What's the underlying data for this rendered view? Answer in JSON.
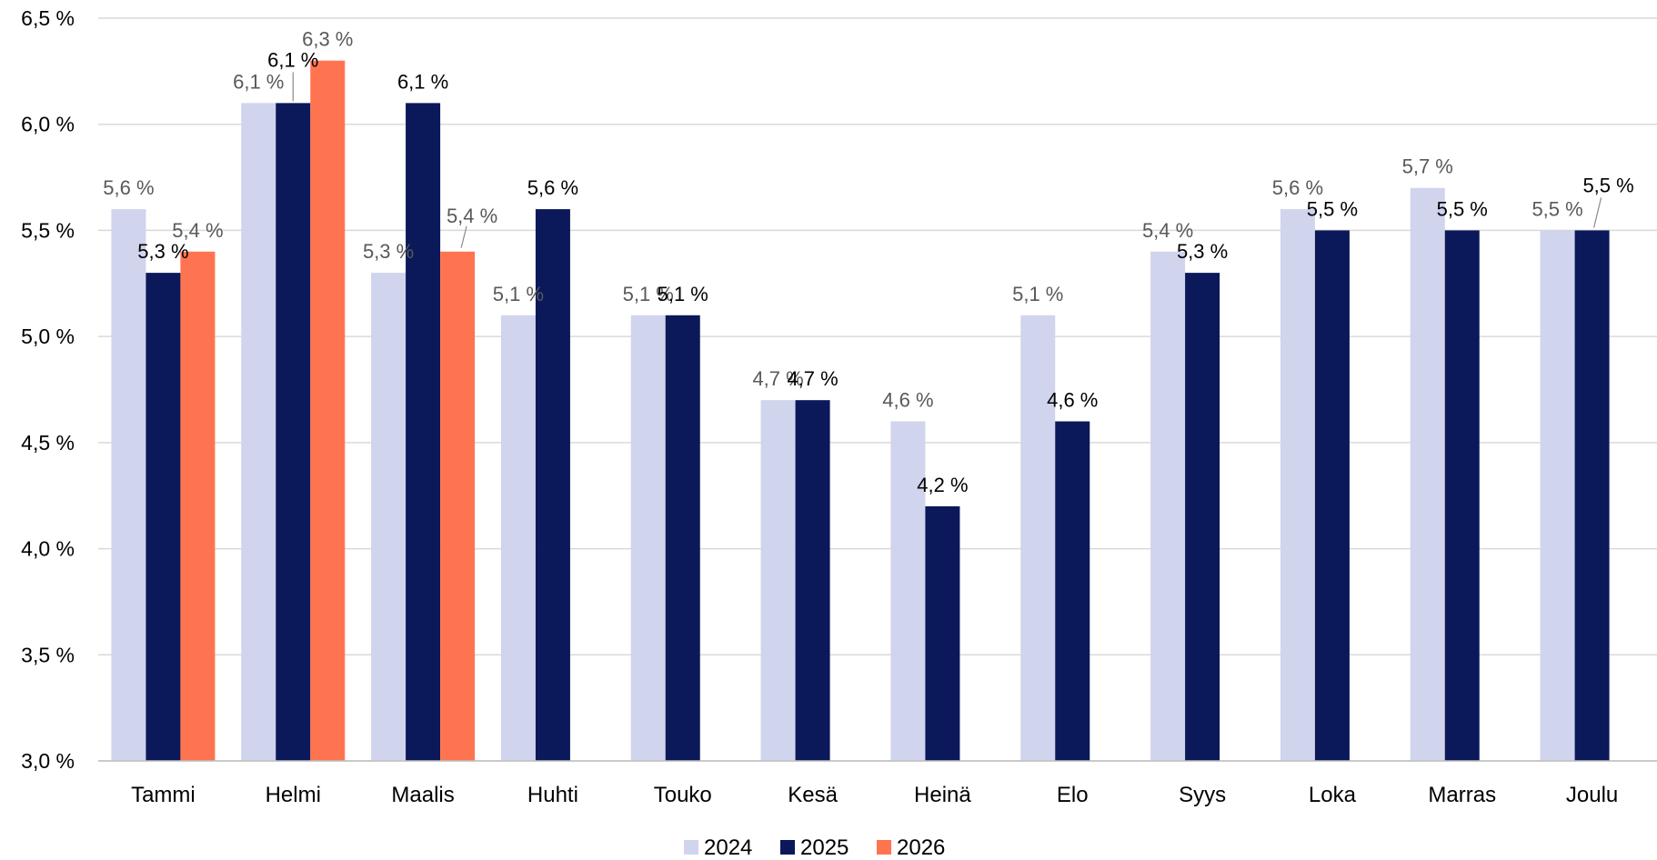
{
  "chart_data": {
    "type": "bar",
    "title": "",
    "xlabel": "",
    "ylabel": "",
    "ylim": [
      3.0,
      6.5
    ],
    "y_ticks": [
      "3,0 %",
      "3,5 %",
      "4,0 %",
      "4,5 %",
      "5,0 %",
      "5,5 %",
      "6,0 %",
      "6,5 %"
    ],
    "grid": true,
    "legend_position": "bottom",
    "categories": [
      "Tammi",
      "Helmi",
      "Maalis",
      "Huhti",
      "Touko",
      "Kesä",
      "Heinä",
      "Elo",
      "Syys",
      "Loka",
      "Marras",
      "Joulu"
    ],
    "series": [
      {
        "name": "2024",
        "color": "#D0D4ED",
        "values": [
          5.6,
          6.1,
          5.3,
          5.1,
          5.1,
          4.7,
          4.6,
          5.1,
          5.4,
          5.6,
          5.7,
          5.5
        ],
        "labels": [
          "5,6 %",
          "6,1 %",
          "5,3 %",
          "5,1 %",
          "5,1 %",
          "4,7 %",
          "4,6 %",
          "5,1 %",
          "5,4 %",
          "5,6 %",
          "5,7 %",
          "5,5 %"
        ]
      },
      {
        "name": "2025",
        "color": "#0B1859",
        "values": [
          5.3,
          6.1,
          6.1,
          5.6,
          5.1,
          4.7,
          4.2,
          4.6,
          5.3,
          5.5,
          5.5,
          5.5
        ],
        "labels": [
          "5,3 %",
          "6,1 %",
          "6,1 %",
          "5,6 %",
          "5,1 %",
          "4,7 %",
          "4,2 %",
          "4,6 %",
          "5,3 %",
          "5,5 %",
          "5,5 %",
          "5,5 %"
        ]
      },
      {
        "name": "2026",
        "color": "#FF7450",
        "values": [
          5.4,
          6.3,
          5.4,
          null,
          null,
          null,
          null,
          null,
          null,
          null,
          null,
          null
        ],
        "labels": [
          "5,4 %",
          "6,3 %",
          "5,4 %",
          "",
          "",
          "",
          "",
          "",
          "",
          "",
          "",
          ""
        ]
      }
    ]
  }
}
